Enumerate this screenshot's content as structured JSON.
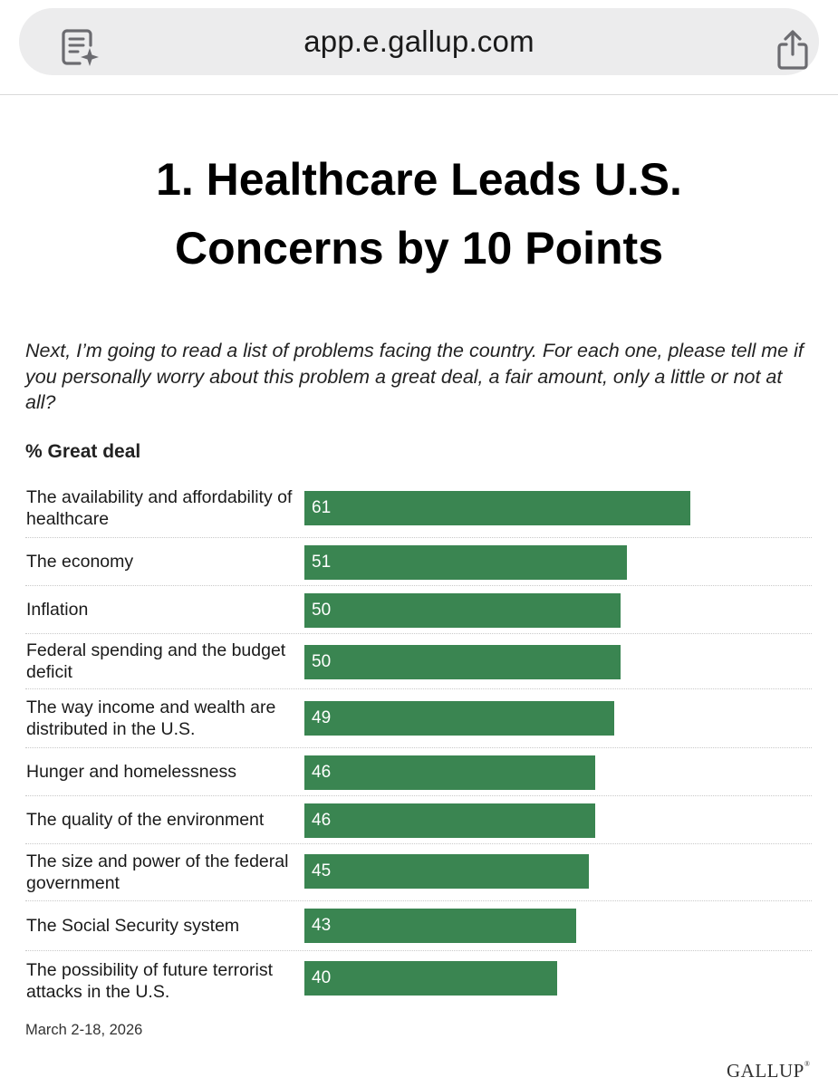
{
  "browser": {
    "url": "app.e.gallup.com",
    "reader_icon": "reader-mode-icon",
    "share_icon": "share-icon"
  },
  "article": {
    "headline_line1": "1. Healthcare Leads U.S.",
    "headline_line2": "Concerns by 10 Points",
    "question": "Next, I’m going to read a list of problems facing the country. For each one, please tell me if you personally worry about this problem a great deal, a fair amount, only a little or not at all?",
    "metric_label": "% Great deal",
    "footnote": "March 2-18, 2026",
    "brand": "GALLUP",
    "brand_mark": "®"
  },
  "colors": {
    "bar": "#3a8551",
    "bar_text": "#ffffff"
  },
  "chart_data": {
    "type": "bar",
    "orientation": "horizontal",
    "title": "1. Healthcare Leads U.S. Concerns by 10 Points",
    "ylabel": "% Great deal",
    "xlim": [
      0,
      100
    ],
    "categories": [
      "The availability and affordability of healthcare",
      "The economy",
      "Inflation",
      "Federal spending and the budget deficit",
      "The way income and wealth are distributed in the U.S.",
      "Hunger and homelessness",
      "The quality of the environment",
      "The size and power of the federal government",
      "The Social Security system",
      "The possibility of future terrorist attacks in the U.S."
    ],
    "values": [
      61,
      51,
      50,
      50,
      49,
      46,
      46,
      45,
      43,
      40
    ]
  }
}
